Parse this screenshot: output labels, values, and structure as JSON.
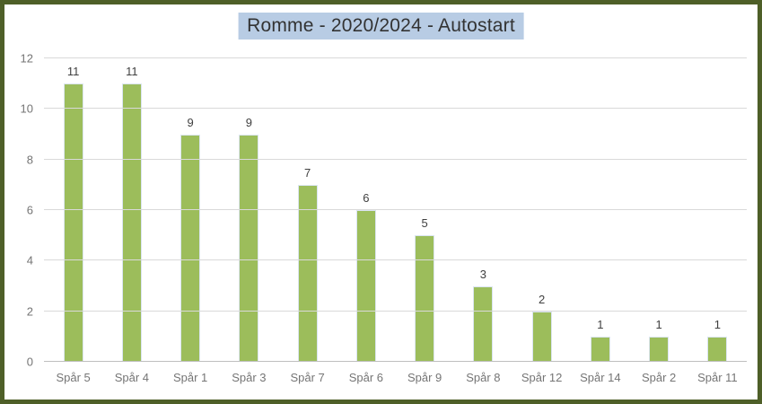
{
  "chart_data": {
    "type": "bar",
    "title": "Romme - 2020/2024 - Autostart",
    "categories": [
      "Spår 5",
      "Spår 4",
      "Spår 1",
      "Spår 3",
      "Spår 7",
      "Spår 6",
      "Spår 9",
      "Spår 8",
      "Spår 12",
      "Spår 14",
      "Spår 2",
      "Spår 11"
    ],
    "values": [
      11,
      11,
      9,
      9,
      7,
      6,
      5,
      3,
      2,
      1,
      1,
      1
    ],
    "xlabel": "",
    "ylabel": "",
    "ylim": [
      0,
      12
    ],
    "yticks": [
      0,
      2,
      4,
      6,
      8,
      10,
      12
    ],
    "grid": "horizontal",
    "legend": "none",
    "data_labels": true,
    "colors": {
      "bar_fill": "#9cbd5b",
      "bar_border": "#dbe5f1",
      "frame_border": "#4e5f28",
      "title_highlight": "#b8cce4",
      "title_text": "#333333",
      "axis_text": "#757575",
      "data_label_text": "#404040",
      "gridline": "#d9d9d9",
      "axis_line": "#bfbfbf",
      "background": "#ffffff"
    }
  }
}
